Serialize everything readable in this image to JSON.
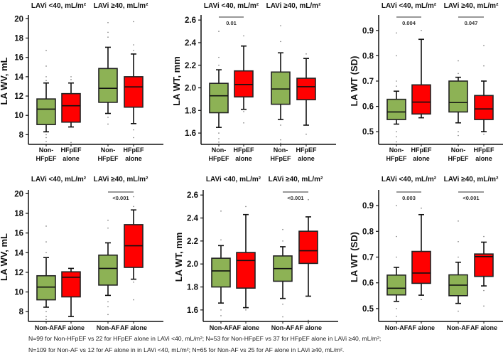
{
  "colors": {
    "control": "#8db255",
    "case": "#ff0000",
    "ink": "#111111"
  },
  "chart_data": [
    {
      "type": "box",
      "ylabel": "LA WV, mL",
      "ylim": [
        7,
        20.1
      ],
      "ticks": [
        8,
        10,
        12,
        14,
        16,
        18,
        20
      ],
      "tick_decimals": 0,
      "group_titles": [
        "LAVi <40, mL/m²",
        "LAVi ≥40, mL/m²"
      ],
      "categories": [
        [
          "Non-",
          "HFpEF"
        ],
        [
          "HFpEF",
          "alone"
        ],
        [
          "Non-",
          "HFpEF"
        ],
        [
          "HFpEF",
          "alone"
        ]
      ],
      "boxes": [
        {
          "min": 8.3,
          "q1": 9.05,
          "median": 10.65,
          "q3": 11.7,
          "max": 13.35,
          "outliers": [
            13.6,
            14,
            15.1,
            16.7,
            8,
            7.7,
            7.3
          ]
        },
        {
          "min": 8.8,
          "q1": 9.3,
          "median": 11.0,
          "q3": 12.25,
          "max": 13.35,
          "outliers": [
            13.7,
            14,
            7.2
          ]
        },
        {
          "min": 10.2,
          "q1": 11.35,
          "median": 12.8,
          "q3": 14.85,
          "max": 17.05,
          "outliers": [
            18.1,
            18.6,
            19.6,
            9.8,
            9.1
          ]
        },
        {
          "min": 9.15,
          "q1": 10.85,
          "median": 12.95,
          "q3": 14.0,
          "max": 16.35,
          "outliers": [
            16.7,
            17.3,
            19.7,
            8.5,
            7.7
          ]
        }
      ],
      "pvalues": [
        null,
        null
      ]
    },
    {
      "type": "box",
      "ylabel": "LA WT, mm",
      "ylim": [
        1.5,
        2.62
      ],
      "ticks": [
        1.6,
        1.8,
        2.0,
        2.2,
        2.4,
        2.6
      ],
      "tick_decimals": 1,
      "group_titles": [
        "LAVi <40, mL/m²",
        "LAVi ≥40, mL/m²"
      ],
      "categories": [
        [
          "Non-",
          "HFpEF"
        ],
        [
          "HFpEF",
          "alone"
        ],
        [
          "Non-",
          "HFpEF"
        ],
        [
          "HFpEF",
          "alone"
        ]
      ],
      "boxes": [
        {
          "min": 1.65,
          "q1": 1.78,
          "median": 1.93,
          "q3": 2.04,
          "max": 2.16,
          "outliers": [
            2.2,
            2.27,
            2.5,
            1.6,
            1.55,
            1.52
          ]
        },
        {
          "min": 1.81,
          "q1": 1.92,
          "median": 2.03,
          "q3": 2.15,
          "max": 2.37,
          "outliers": [
            2.46,
            1.79,
            1.69
          ]
        },
        {
          "min": 1.72,
          "q1": 1.855,
          "median": 1.99,
          "q3": 2.14,
          "max": 2.31,
          "outliers": [
            2.41,
            2.55,
            1.67,
            1.54,
            1.51
          ]
        },
        {
          "min": 1.67,
          "q1": 1.895,
          "median": 2.01,
          "q3": 2.085,
          "max": 2.26,
          "outliers": [
            2.3,
            1.59
          ]
        }
      ],
      "pvalues": [
        "0.01",
        null
      ]
    },
    {
      "type": "box",
      "ylabel": "LA WT (SD)",
      "ylim": [
        0.45,
        0.95
      ],
      "ticks": [
        0.5,
        0.6,
        0.7,
        0.8,
        0.9
      ],
      "tick_decimals": 1,
      "group_titles": [
        "LAVi <40, mL/m²",
        "LAVi ≥40, mL/m²"
      ],
      "categories": [
        [
          "Non-",
          "HFpEF"
        ],
        [
          "HFpEF",
          "alone"
        ],
        [
          "Non-",
          "HFpEF"
        ],
        [
          "HFpEF",
          "alone"
        ]
      ],
      "boxes": [
        {
          "min": 0.53,
          "q1": 0.548,
          "median": 0.578,
          "q3": 0.628,
          "max": 0.66,
          "outliers": [
            0.68,
            0.7,
            0.8,
            0.89,
            0.5,
            0.48,
            0.46
          ]
        },
        {
          "min": 0.555,
          "q1": 0.57,
          "median": 0.617,
          "q3": 0.685,
          "max": 0.865,
          "outliers": [
            0.9
          ]
        },
        {
          "min": 0.535,
          "q1": 0.578,
          "median": 0.615,
          "q3": 0.7,
          "max": 0.715,
          "outliers": [
            0.73,
            0.78,
            0.5,
            0.485
          ]
        },
        {
          "min": 0.5,
          "q1": 0.548,
          "median": 0.59,
          "q3": 0.643,
          "max": 0.7,
          "outliers": [
            0.76,
            0.84,
            0.49
          ]
        }
      ],
      "pvalues": [
        "0.004",
        "0.047"
      ]
    },
    {
      "type": "box",
      "ylabel": "LA WV, mL",
      "ylim": [
        7,
        20.1
      ],
      "ticks": [
        8,
        10,
        12,
        14,
        16,
        18,
        20
      ],
      "tick_decimals": 0,
      "group_titles": [
        "LAVi <40, mL/m²",
        "LAVi ≥40, mL/m²"
      ],
      "categories": [
        [
          "Non-AF"
        ],
        [
          "AF alone"
        ],
        [
          "Non-AF"
        ],
        [
          "AF alone"
        ]
      ],
      "boxes": [
        {
          "min": 8.45,
          "q1": 9.2,
          "median": 10.5,
          "q3": 11.65,
          "max": 13.5,
          "outliers": [
            14,
            15.1,
            16.7,
            8,
            7.5,
            7.2
          ]
        },
        {
          "min": 7.5,
          "q1": 9.5,
          "median": 11.5,
          "q3": 12.05,
          "max": 12.4,
          "outliers": []
        },
        {
          "min": 9.65,
          "q1": 10.7,
          "median": 12.4,
          "q3": 13.75,
          "max": 15.0,
          "outliers": [
            16.5,
            17.3,
            9,
            8.5,
            7.7
          ]
        },
        {
          "min": 11.3,
          "q1": 12.5,
          "median": 14.7,
          "q3": 16.85,
          "max": 18.35,
          "outliers": [
            18.7,
            19.7,
            11,
            9.2
          ]
        }
      ],
      "pvalues": [
        null,
        "<0.001"
      ]
    },
    {
      "type": "box",
      "ylabel": "LA WT, mm",
      "ylim": [
        1.5,
        2.62
      ],
      "ticks": [
        1.6,
        1.8,
        2.0,
        2.2,
        2.4,
        2.6
      ],
      "tick_decimals": 1,
      "group_titles": [
        "LAVi <40, mL/m²",
        "LAVi ≥40, mL/m²"
      ],
      "categories": [
        [
          "Non-AF"
        ],
        [
          "AF alone"
        ],
        [
          "Non-AF"
        ],
        [
          "AF alone"
        ]
      ],
      "boxes": [
        {
          "min": 1.66,
          "q1": 1.8,
          "median": 1.94,
          "q3": 2.05,
          "max": 2.16,
          "outliers": [
            2.21,
            2.46,
            1.6,
            1.55
          ]
        },
        {
          "min": 1.62,
          "q1": 1.79,
          "median": 2.03,
          "q3": 2.1,
          "max": 2.43,
          "outliers": [
            2.5,
            1.6
          ]
        },
        {
          "min": 1.7,
          "q1": 1.85,
          "median": 1.96,
          "q3": 2.07,
          "max": 2.15,
          "outliers": [
            2.2,
            2.3,
            1.65,
            1.54
          ]
        },
        {
          "min": 1.72,
          "q1": 2.005,
          "median": 2.115,
          "q3": 2.285,
          "max": 2.41,
          "outliers": [
            2.56,
            1.51
          ]
        }
      ],
      "pvalues": [
        null,
        "<0.001"
      ]
    },
    {
      "type": "box",
      "ylabel": "LA WT (SD)",
      "ylim": [
        0.45,
        0.95
      ],
      "ticks": [
        0.5,
        0.6,
        0.7,
        0.8,
        0.9
      ],
      "tick_decimals": 1,
      "group_titles": [
        "LAVi <40, mL/m²",
        "LAVi ≥40, mL/m²"
      ],
      "categories": [
        [
          "Non-AF"
        ],
        [
          "AF alone"
        ],
        [
          "Non-AF"
        ],
        [
          "AF alone"
        ]
      ],
      "boxes": [
        {
          "min": 0.528,
          "q1": 0.553,
          "median": 0.579,
          "q3": 0.63,
          "max": 0.66,
          "outliers": [
            0.7,
            0.78,
            0.9,
            0.5,
            0.47
          ]
        },
        {
          "min": 0.552,
          "q1": 0.598,
          "median": 0.638,
          "q3": 0.722,
          "max": 0.865,
          "outliers": [
            0.89,
            0.535
          ]
        },
        {
          "min": 0.52,
          "q1": 0.55,
          "median": 0.591,
          "q3": 0.631,
          "max": 0.68,
          "outliers": [
            0.7,
            0.76,
            0.84,
            0.49
          ]
        },
        {
          "min": 0.588,
          "q1": 0.625,
          "median": 0.702,
          "q3": 0.712,
          "max": 0.758,
          "outliers": [
            0.78,
            0.57,
            0.51
          ]
        }
      ],
      "pvalues": [
        "0.003",
        "<0.001"
      ]
    }
  ],
  "footnote": [
    "N=99 for Non-HFpEF vs 22 for HFpEF alone in LAVi <40, mL/m²; N=53 for Non-HFpEF vs 37 for HFpEF alone in LAVi ≥40, mL/m²;",
    "N=109 for Non-AF vs 12 for AF alone in in LAVi <40, mL/m²; N=65 for Non-AF vs 25 for AF alone in LAVi ≥40, mL/m²."
  ]
}
